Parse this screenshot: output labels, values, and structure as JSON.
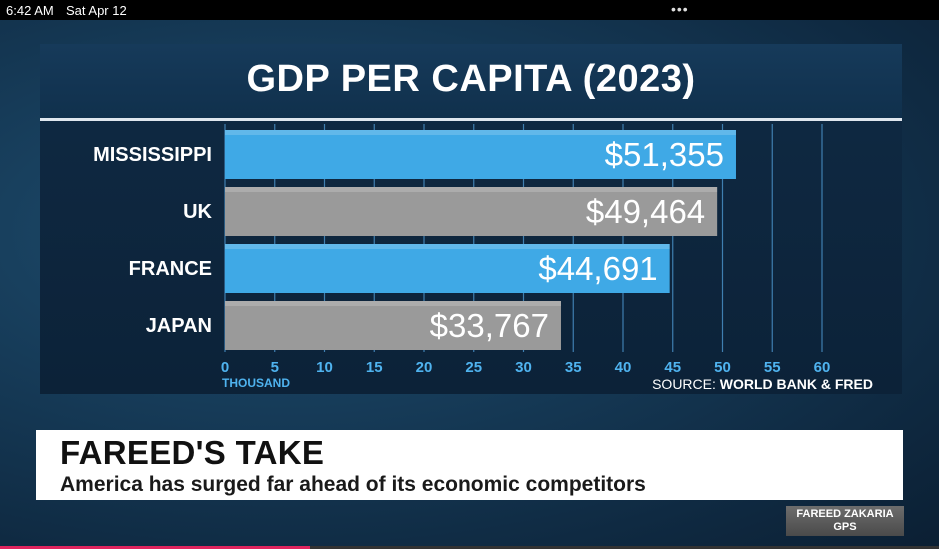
{
  "status_bar": {
    "time": "6:42 AM",
    "date": "Sat Apr 12",
    "dots": "•••"
  },
  "chart_data": {
    "type": "bar",
    "orientation": "horizontal",
    "title": "GDP PER CAPITA (2023)",
    "categories": [
      "MISSISSIPPI",
      "UK",
      "FRANCE",
      "JAPAN"
    ],
    "values": [
      51355,
      49464,
      44691,
      33767
    ],
    "value_labels": [
      "$51,355",
      "$49,464",
      "$44,691",
      "$33,767"
    ],
    "bar_colors": [
      "#3fa9e6",
      "#9a9a9a",
      "#3fa9e6",
      "#9a9a9a"
    ],
    "x_ticks": [
      "0",
      "5",
      "10",
      "15",
      "20",
      "25",
      "30",
      "35",
      "40",
      "45",
      "50",
      "55",
      "60"
    ],
    "xlim": [
      0,
      60
    ],
    "xlabel": "THOUSAND",
    "source_prefix": "SOURCE: ",
    "source_name": "WORLD BANK & FRED",
    "grid": true
  },
  "lower_third": {
    "title": "FAREED'S TAKE",
    "subtitle": "America has surged far ahead of its economic competitors"
  },
  "bug": {
    "line1": "FAREED ZAKARIA",
    "line2": "GPS"
  },
  "progress": {
    "fraction": 0.33
  }
}
